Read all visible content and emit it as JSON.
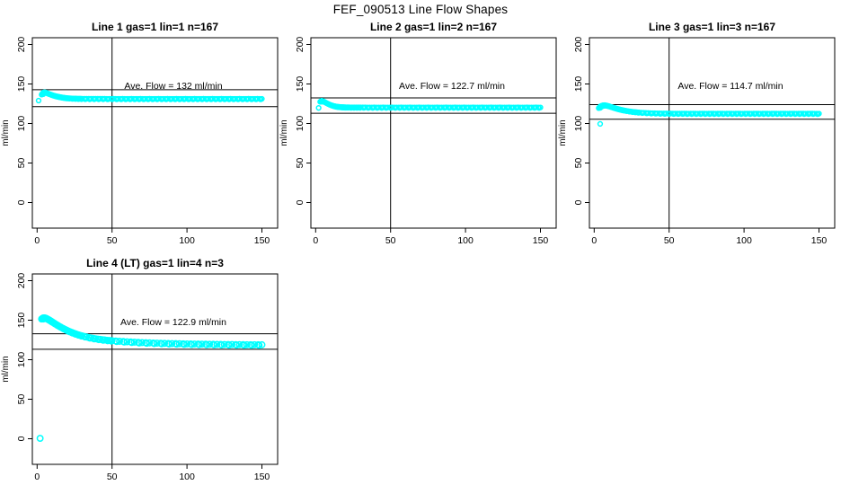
{
  "figure": {
    "title": "FEF_090513  Line Flow Shapes",
    "background_color": "#ffffff",
    "point_color": "#00ffff",
    "axis_color": "#000000"
  },
  "axes": {
    "ylabel": "ml/min",
    "y_ticks": [
      "0",
      "50",
      "100",
      "150",
      "200"
    ],
    "x_ticks": [
      "0",
      "50",
      "100",
      "150"
    ],
    "y_tick_values": [
      0,
      50,
      100,
      150,
      200
    ],
    "x_tick_values": [
      0,
      50,
      100,
      150
    ],
    "grid": "off",
    "legend": "none"
  },
  "chart_data": [
    {
      "type": "scatter",
      "title": "Line 1 gas=1 lin=1 n=167",
      "annotation": "Ave. Flow =  132  ml/min",
      "ave_flow_ml_min": 132,
      "n": 167,
      "gas": 1,
      "lin": 1,
      "xlim": [
        0,
        150
      ],
      "ylim": [
        0,
        200
      ],
      "vline_x": 50,
      "ref_lines_y": [
        142.8,
        121.3
      ],
      "marker_radius": 2.4,
      "lone_points": [
        [
          1,
          129
        ]
      ],
      "band": [
        [
          3,
          136.5
        ],
        [
          4,
          139
        ],
        [
          5,
          139.5
        ],
        [
          6,
          139
        ],
        [
          7,
          138.2
        ],
        [
          8,
          137.4
        ],
        [
          9,
          136.7
        ],
        [
          10,
          136
        ],
        [
          11,
          135.4
        ],
        [
          12,
          134.9
        ],
        [
          13,
          134.4
        ],
        [
          14,
          134
        ],
        [
          15,
          133.6
        ],
        [
          16,
          133.2
        ],
        [
          17,
          132.9
        ],
        [
          18,
          132.6
        ],
        [
          19,
          132.4
        ],
        [
          20,
          132.2
        ],
        [
          22,
          131.9
        ],
        [
          24,
          131.7
        ],
        [
          26,
          131.6
        ],
        [
          28,
          131.5
        ],
        [
          30,
          131.4
        ],
        [
          33,
          131.3
        ],
        [
          36,
          131.3
        ],
        [
          39,
          131.3
        ],
        [
          42,
          131.3
        ],
        [
          45,
          131.3
        ],
        [
          48,
          131.2
        ],
        [
          51,
          131.3
        ],
        [
          54,
          131.2
        ],
        [
          57,
          131.3
        ],
        [
          60,
          131.2
        ],
        [
          63,
          131.3
        ],
        [
          66,
          131.2
        ],
        [
          69,
          131.3
        ],
        [
          72,
          131.2
        ],
        [
          75,
          131.3
        ],
        [
          78,
          131.2
        ],
        [
          81,
          131.3
        ],
        [
          84,
          131.2
        ],
        [
          87,
          131.3
        ],
        [
          90,
          131.2
        ],
        [
          93,
          131.3
        ],
        [
          96,
          131.2
        ],
        [
          99,
          131.3
        ],
        [
          102,
          131.2
        ],
        [
          105,
          131.3
        ],
        [
          108,
          131.2
        ],
        [
          111,
          131.3
        ],
        [
          114,
          131.2
        ],
        [
          117,
          131.3
        ],
        [
          120,
          131.2
        ],
        [
          123,
          131.3
        ],
        [
          126,
          131.2
        ],
        [
          129,
          131.3
        ],
        [
          132,
          131.2
        ],
        [
          135,
          131.3
        ],
        [
          138,
          131.2
        ],
        [
          141,
          131.3
        ],
        [
          144,
          131.2
        ],
        [
          147,
          131.3
        ],
        [
          150,
          131.2
        ]
      ]
    },
    {
      "type": "scatter",
      "title": "Line 2 gas=1 lin=2 n=167",
      "annotation": "Ave. Flow =  122.7  ml/min",
      "ave_flow_ml_min": 122.7,
      "n": 167,
      "gas": 1,
      "lin": 2,
      "xlim": [
        0,
        150
      ],
      "ylim": [
        0,
        200
      ],
      "vline_x": 50,
      "ref_lines_y": [
        132.4,
        112.9
      ],
      "marker_radius": 2.4,
      "lone_points": [
        [
          2,
          119.7
        ]
      ],
      "band": [
        [
          3,
          127.5
        ],
        [
          4,
          128.8
        ],
        [
          5,
          128.2
        ],
        [
          6,
          127.2
        ],
        [
          7,
          126.1
        ],
        [
          8,
          125.1
        ],
        [
          9,
          124.2
        ],
        [
          10,
          123.4
        ],
        [
          11,
          122.8
        ],
        [
          12,
          122.2
        ],
        [
          13,
          121.8
        ],
        [
          14,
          121.4
        ],
        [
          15,
          121.2
        ],
        [
          16,
          121
        ],
        [
          17,
          120.8
        ],
        [
          18,
          120.7
        ],
        [
          19,
          120.6
        ],
        [
          20,
          120.6
        ],
        [
          22,
          120.5
        ],
        [
          24,
          120.4
        ],
        [
          26,
          120.4
        ],
        [
          28,
          120.4
        ],
        [
          30,
          120.4
        ],
        [
          33,
          120.4
        ],
        [
          36,
          120.3
        ],
        [
          39,
          120.4
        ],
        [
          42,
          120.3
        ],
        [
          45,
          120.4
        ],
        [
          48,
          120.3
        ],
        [
          51,
          120.4
        ],
        [
          54,
          120.3
        ],
        [
          57,
          120.4
        ],
        [
          60,
          120.3
        ],
        [
          63,
          120.4
        ],
        [
          66,
          120.3
        ],
        [
          69,
          120.4
        ],
        [
          72,
          120.3
        ],
        [
          75,
          120.4
        ],
        [
          78,
          120.3
        ],
        [
          81,
          120.4
        ],
        [
          84,
          120.3
        ],
        [
          87,
          120.4
        ],
        [
          90,
          120.3
        ],
        [
          93,
          120.4
        ],
        [
          96,
          120.3
        ],
        [
          99,
          120.4
        ],
        [
          102,
          120.3
        ],
        [
          105,
          120.4
        ],
        [
          108,
          120.3
        ],
        [
          111,
          120.4
        ],
        [
          114,
          120.3
        ],
        [
          117,
          120.4
        ],
        [
          120,
          120.3
        ],
        [
          123,
          120.4
        ],
        [
          126,
          120.3
        ],
        [
          129,
          120.4
        ],
        [
          132,
          120.3
        ],
        [
          135,
          120.4
        ],
        [
          138,
          120.3
        ],
        [
          141,
          120.4
        ],
        [
          144,
          120.3
        ],
        [
          147,
          120.4
        ],
        [
          150,
          120.3
        ]
      ]
    },
    {
      "type": "scatter",
      "title": "Line 3 gas=1 lin=3 n=167",
      "annotation": "Ave. Flow =  114.7  ml/min",
      "ave_flow_ml_min": 114.7,
      "n": 167,
      "gas": 1,
      "lin": 3,
      "xlim": [
        0,
        150
      ],
      "ylim": [
        0,
        200
      ],
      "vline_x": 50,
      "ref_lines_y": [
        123.9,
        105.4
      ],
      "marker_radius": 2.4,
      "lone_points": [
        [
          4,
          99.5
        ]
      ],
      "band": [
        [
          3,
          119.5
        ],
        [
          4,
          121.5
        ],
        [
          5,
          122.6
        ],
        [
          6,
          123.1
        ],
        [
          7,
          123.2
        ],
        [
          8,
          122.9
        ],
        [
          9,
          122.4
        ],
        [
          10,
          121.8
        ],
        [
          11,
          121.2
        ],
        [
          12,
          120.6
        ],
        [
          13,
          120
        ],
        [
          14,
          119.4
        ],
        [
          15,
          118.9
        ],
        [
          16,
          118.3
        ],
        [
          17,
          117.9
        ],
        [
          18,
          117.4
        ],
        [
          19,
          117
        ],
        [
          20,
          116.6
        ],
        [
          22,
          115.9
        ],
        [
          24,
          115.3
        ],
        [
          26,
          114.8
        ],
        [
          28,
          114.4
        ],
        [
          30,
          114
        ],
        [
          33,
          113.6
        ],
        [
          36,
          113.3
        ],
        [
          39,
          113.1
        ],
        [
          42,
          112.9
        ],
        [
          45,
          112.8
        ],
        [
          48,
          112.7
        ],
        [
          51,
          112.7
        ],
        [
          54,
          112.6
        ],
        [
          57,
          112.6
        ],
        [
          60,
          112.6
        ],
        [
          63,
          112.5
        ],
        [
          66,
          112.6
        ],
        [
          69,
          112.5
        ],
        [
          72,
          112.6
        ],
        [
          75,
          112.5
        ],
        [
          78,
          112.6
        ],
        [
          81,
          112.5
        ],
        [
          84,
          112.6
        ],
        [
          87,
          112.5
        ],
        [
          90,
          112.6
        ],
        [
          93,
          112.5
        ],
        [
          96,
          112.6
        ],
        [
          99,
          112.5
        ],
        [
          102,
          112.6
        ],
        [
          105,
          112.5
        ],
        [
          108,
          112.6
        ],
        [
          111,
          112.5
        ],
        [
          114,
          112.6
        ],
        [
          117,
          112.5
        ],
        [
          120,
          112.6
        ],
        [
          123,
          112.5
        ],
        [
          126,
          112.6
        ],
        [
          129,
          112.5
        ],
        [
          132,
          112.6
        ],
        [
          135,
          112.5
        ],
        [
          138,
          112.6
        ],
        [
          141,
          112.5
        ],
        [
          144,
          112.6
        ],
        [
          147,
          112.5
        ],
        [
          150,
          112.5
        ]
      ]
    },
    {
      "type": "scatter",
      "title": "Line 4 (LT) gas=1 lin=4 n=3",
      "annotation": "Ave. Flow =  122.9  ml/min",
      "ave_flow_ml_min": 122.9,
      "n": 3,
      "gas": 1,
      "lin": 4,
      "xlim": [
        0,
        150
      ],
      "ylim": [
        0,
        200
      ],
      "vline_x": 50,
      "ref_lines_y": [
        132.8,
        113.2
      ],
      "marker_radius": 3.2,
      "lone_points": [
        [
          2,
          0.5
        ]
      ],
      "band": [
        [
          3,
          151.5
        ],
        [
          4,
          152.8
        ],
        [
          5,
          152.9
        ],
        [
          6,
          152.3
        ],
        [
          7,
          151.3
        ],
        [
          8,
          150.2
        ],
        [
          9,
          149
        ],
        [
          10,
          147.8
        ],
        [
          12,
          145.4
        ],
        [
          14,
          143.1
        ],
        [
          16,
          140.9
        ],
        [
          18,
          138.9
        ],
        [
          20,
          137
        ],
        [
          22,
          135.3
        ],
        [
          24,
          133.8
        ],
        [
          26,
          132.4
        ],
        [
          28,
          131.2
        ],
        [
          30,
          130.1
        ],
        [
          33,
          128.7
        ],
        [
          36,
          127.5
        ],
        [
          39,
          126.5
        ],
        [
          42,
          125.7
        ],
        [
          45,
          125
        ],
        [
          48,
          124.4
        ],
        [
          50,
          124.1
        ],
        [
          55,
          123.3
        ],
        [
          60,
          122.7
        ],
        [
          65,
          122.2
        ],
        [
          70,
          121.7
        ],
        [
          75,
          121.3
        ],
        [
          80,
          121
        ],
        [
          85,
          120.7
        ],
        [
          90,
          120.4
        ],
        [
          95,
          120.2
        ],
        [
          100,
          120
        ],
        [
          105,
          119.8
        ],
        [
          110,
          119.7
        ],
        [
          115,
          119.5
        ],
        [
          120,
          119.4
        ],
        [
          125,
          119.3
        ],
        [
          130,
          119.2
        ],
        [
          135,
          119.1
        ],
        [
          140,
          119
        ],
        [
          145,
          119
        ],
        [
          150,
          118.9
        ]
      ]
    }
  ]
}
